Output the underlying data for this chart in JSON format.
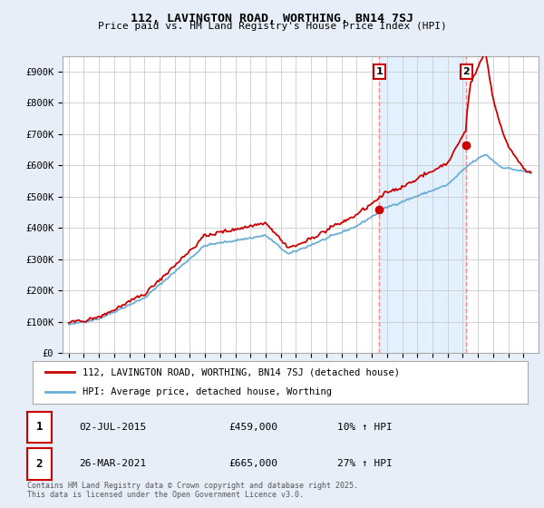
{
  "title": "112, LAVINGTON ROAD, WORTHING, BN14 7SJ",
  "subtitle": "Price paid vs. HM Land Registry's House Price Index (HPI)",
  "ytick_labels": [
    "£0",
    "£100K",
    "£200K",
    "£300K",
    "£400K",
    "£500K",
    "£600K",
    "£700K",
    "£800K",
    "£900K"
  ],
  "hpi_color": "#6aaed6",
  "price_color": "#cc0000",
  "vline_color": "#ff8888",
  "shade_color": "#ddeeff",
  "legend_label_price": "112, LAVINGTON ROAD, WORTHING, BN14 7SJ (detached house)",
  "legend_label_hpi": "HPI: Average price, detached house, Worthing",
  "transaction1_date": "02-JUL-2015",
  "transaction1_price": "£459,000",
  "transaction1_hpi": "10% ↑ HPI",
  "transaction2_date": "26-MAR-2021",
  "transaction2_price": "£665,000",
  "transaction2_hpi": "27% ↑ HPI",
  "footnote": "Contains HM Land Registry data © Crown copyright and database right 2025.\nThis data is licensed under the Open Government Licence v3.0.",
  "bg_color": "#e8eef8",
  "plot_bg_color": "#ffffff",
  "t1_year": 2015.5,
  "t2_year": 2021.23,
  "p1_price": 459000,
  "p2_price": 665000
}
